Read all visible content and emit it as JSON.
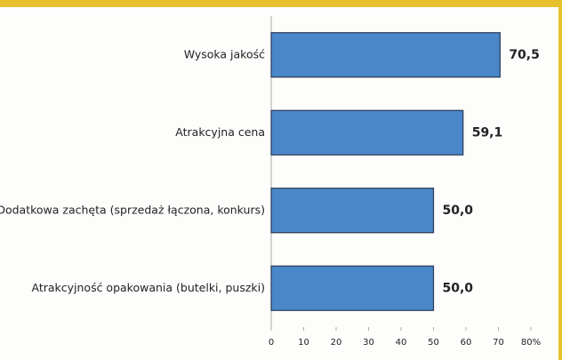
{
  "chart_data": {
    "type": "bar",
    "orientation": "horizontal",
    "categories": [
      "Wysoka jakość",
      "Atrakcyjna cena",
      "Dodatkowa zachęta (sprzedaż łączona, konkurs)",
      "Atrakcyjność opakowania (butelki, puszki)"
    ],
    "values": [
      70.5,
      59.1,
      50.0,
      50.0
    ],
    "value_labels": [
      "70,5",
      "59,1",
      "50,0",
      "50,0"
    ],
    "color": "#4a87c9",
    "xlim": [
      0,
      80
    ],
    "xticks": [
      0,
      10,
      20,
      30,
      40,
      50,
      60,
      70,
      {
        "value": 80,
        "label": "80%"
      }
    ]
  }
}
